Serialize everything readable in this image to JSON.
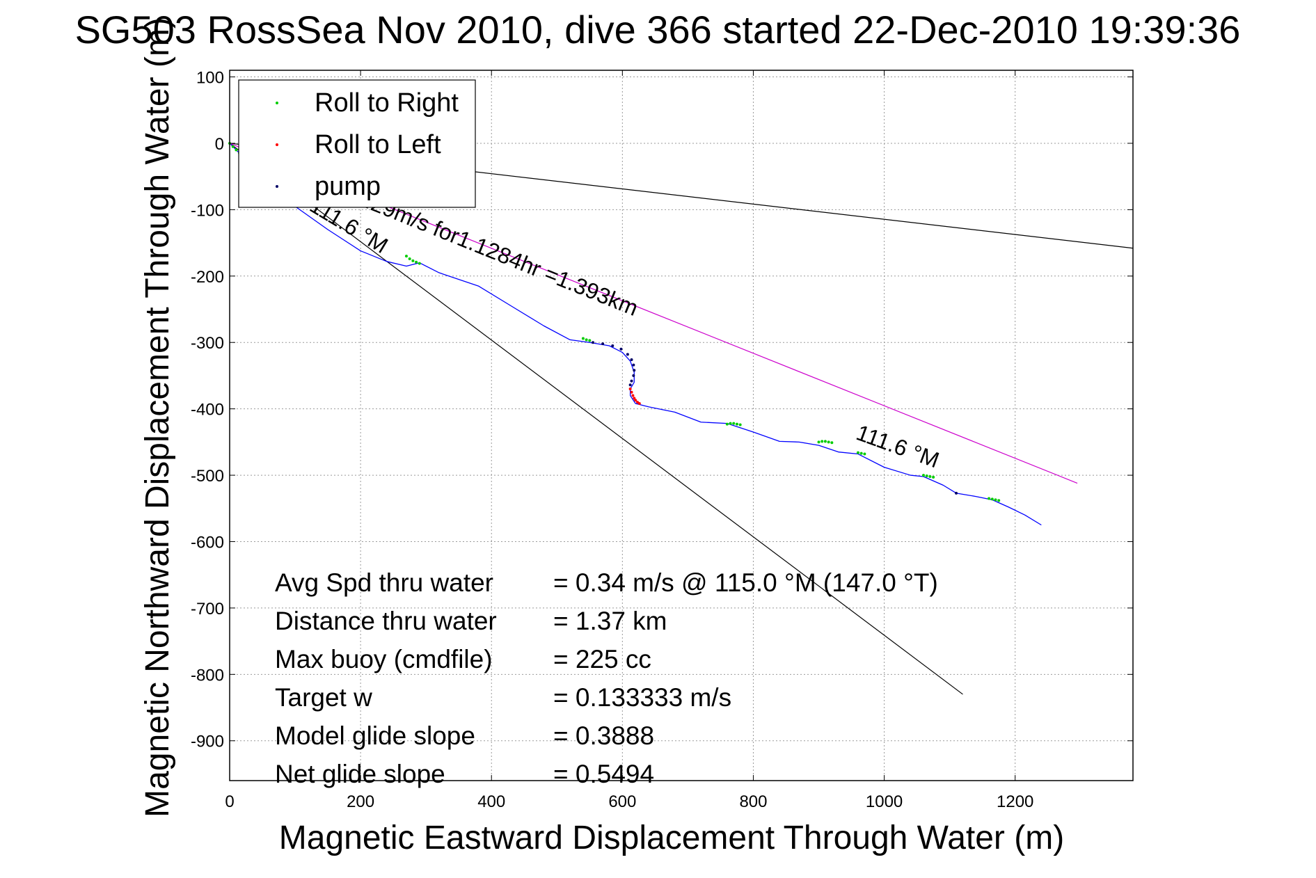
{
  "chart_data": {
    "type": "line",
    "title": "SG503 RossSea Nov 2010, dive 366 started 22-Dec-2010 19:39:36",
    "xlabel": "Magnetic Eastward Displacement Through Water (m)",
    "ylabel": "Magnetic Northward Displacement Through Water (m)",
    "xlim": [
      0,
      1380
    ],
    "ylim": [
      -960,
      110
    ],
    "xticks": [
      0,
      200,
      400,
      600,
      800,
      1000,
      1200
    ],
    "yticks": [
      100,
      0,
      -100,
      -200,
      -300,
      -400,
      -500,
      -600,
      -700,
      -800,
      -900
    ],
    "grid": true,
    "legend": {
      "placement": "top-left",
      "entries": [
        {
          "label": "Roll to Right",
          "color": "#00cc00"
        },
        {
          "label": "Roll to Left",
          "color": "#ff0000"
        },
        {
          "label": "pump",
          "color": "#000066"
        }
      ]
    },
    "series": [
      {
        "color": "#0000ff",
        "x": [
          0,
          30,
          60,
          100,
          150,
          200,
          240,
          270,
          290,
          320,
          380,
          430,
          480,
          520,
          550,
          580,
          600,
          612,
          618,
          618,
          612,
          612,
          620,
          640,
          680,
          720,
          760,
          800,
          840,
          870,
          900,
          930,
          960,
          1000,
          1040,
          1060,
          1090,
          1110,
          1140,
          1165,
          1190,
          1215,
          1240
        ],
        "y": [
          0,
          -30,
          -60,
          -95,
          -130,
          -162,
          -178,
          -185,
          -180,
          -195,
          -215,
          -245,
          -275,
          -296,
          -300,
          -305,
          -315,
          -328,
          -345,
          -360,
          -370,
          -380,
          -392,
          -397,
          -405,
          -420,
          -422,
          -435,
          -449,
          -450,
          -455,
          -465,
          -468,
          -488,
          -500,
          -502,
          -515,
          -527,
          -532,
          -537,
          -548,
          -560,
          -575
        ]
      },
      {
        "name": "Roll to Right",
        "color": "#00cc00",
        "marker": "dot",
        "x": [
          0,
          5,
          10,
          15,
          20,
          270,
          275,
          280,
          285,
          290,
          540,
          545,
          550,
          760,
          765,
          770,
          775,
          780,
          900,
          905,
          910,
          915,
          920,
          960,
          965,
          970,
          1060,
          1065,
          1070,
          1075,
          1160,
          1165,
          1170,
          1175
        ],
        "y": [
          0,
          -5,
          -10,
          -15,
          -20,
          -170,
          -174,
          -177,
          -179,
          -181,
          -294,
          -296,
          -297,
          -423,
          -422,
          -422,
          -423,
          -424,
          -450,
          -449,
          -449,
          -450,
          -451,
          -466,
          -467,
          -468,
          -500,
          -501,
          -502,
          -503,
          -535,
          -536,
          -537,
          -538
        ]
      },
      {
        "name": "Roll to Left",
        "color": "#ff0000",
        "marker": "dot",
        "x": [
          612,
          614,
          616,
          618,
          620,
          623,
          626
        ],
        "y": [
          -370,
          -375,
          -380,
          -384,
          -387,
          -390,
          -392
        ]
      },
      {
        "name": "pump",
        "color": "#000066",
        "marker": "dot",
        "x": [
          555,
          570,
          585,
          598,
          608,
          614,
          617,
          618,
          617,
          614,
          612,
          1110
        ],
        "y": [
          -300,
          -302,
          -305,
          -310,
          -318,
          -326,
          -334,
          -342,
          -350,
          -358,
          -364,
          -527
        ]
      }
    ],
    "reference_lines": [
      {
        "color": "#000000",
        "x": [
          0,
          1380
        ],
        "y": [
          0,
          -158
        ]
      },
      {
        "color": "#000000",
        "x": [
          0,
          1120
        ],
        "y": [
          0,
          -830
        ]
      },
      {
        "color": "#cc00cc",
        "x": [
          0,
          1295
        ],
        "y": [
          0,
          -512
        ]
      }
    ],
    "annotations": [
      {
        "text": "111.6 °M",
        "x": 120,
        "y": -100,
        "angle_deg": 31
      },
      {
        "text": ".29m/s for1.1284hr =1.393km",
        "x": 205,
        "y": -96,
        "angle_deg": 22
      },
      {
        "text": "111.6 °M",
        "x": 955,
        "y": -445,
        "angle_deg": 20
      }
    ],
    "stats": [
      {
        "label": "Avg Spd thru water",
        "value": "=  0.34 m/s @ 115.0 °M (147.0 °T)"
      },
      {
        "label": "Distance thru water",
        "value": "=  1.37 km"
      },
      {
        "label": "Max buoy (cmdfile)",
        "value": "= 225 cc"
      },
      {
        "label": "Target w",
        "value": "= 0.133333 m/s"
      },
      {
        "label": "Model glide slope",
        "value": "= 0.3888"
      },
      {
        "label": "Net glide slope",
        "value": "= 0.5494"
      }
    ]
  }
}
